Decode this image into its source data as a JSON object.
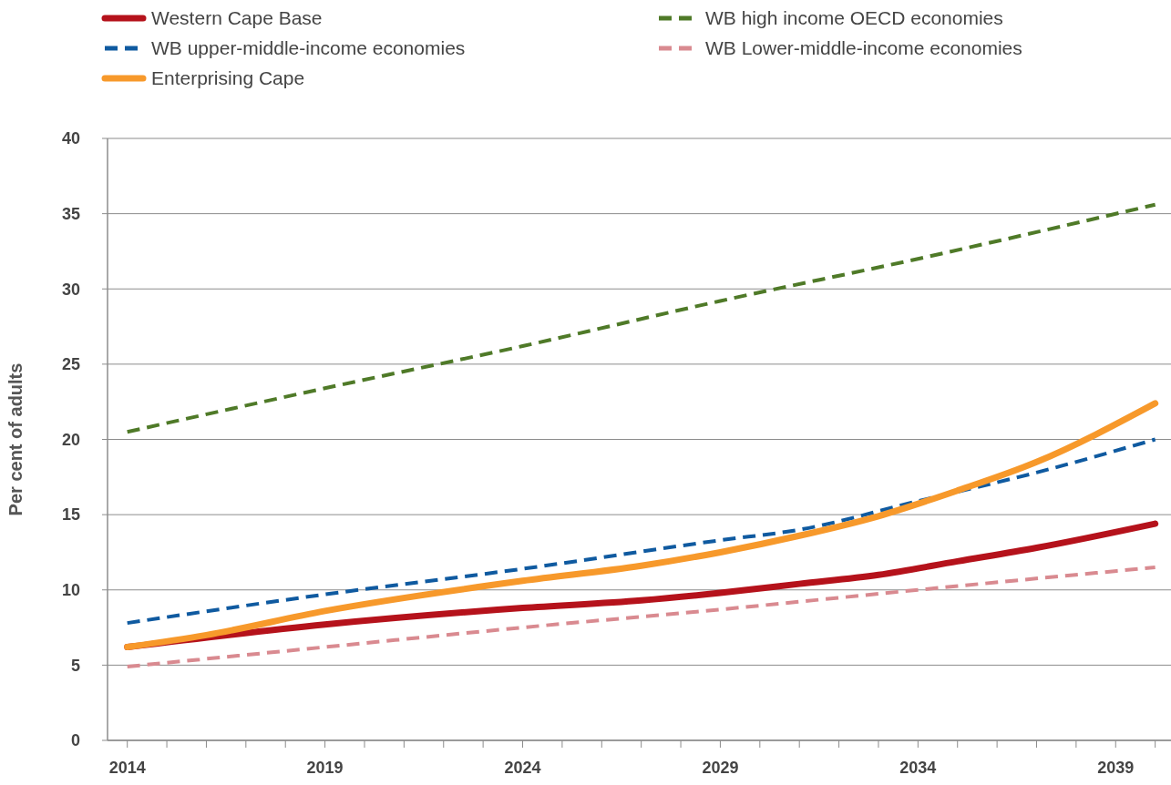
{
  "chart_data": {
    "type": "line",
    "ylabel": "Per cent of adults",
    "xlim": [
      2013.5,
      2040.4
    ],
    "xticks": [
      2014,
      {
        "value": 2015,
        "label": null
      },
      {
        "value": 2016,
        "label": null
      },
      {
        "value": 2017,
        "label": null
      },
      {
        "value": 2018,
        "label": null
      },
      2019,
      {
        "value": 2020,
        "label": null
      },
      {
        "value": 2021,
        "label": null
      },
      {
        "value": 2022,
        "label": null
      },
      {
        "value": 2023,
        "label": null
      },
      2024,
      {
        "value": 2025,
        "label": null
      },
      {
        "value": 2026,
        "label": null
      },
      {
        "value": 2027,
        "label": null
      },
      {
        "value": 2028,
        "label": null
      },
      2029,
      {
        "value": 2030,
        "label": null
      },
      {
        "value": 2031,
        "label": null
      },
      {
        "value": 2032,
        "label": null
      },
      {
        "value": 2033,
        "label": null
      },
      2034,
      {
        "value": 2035,
        "label": null
      },
      {
        "value": 2036,
        "label": null
      },
      {
        "value": 2037,
        "label": null
      },
      {
        "value": 2038,
        "label": null
      },
      2039,
      {
        "value": 2040,
        "label": null
      }
    ],
    "ylim": [
      0,
      40
    ],
    "yticks": [
      0,
      5,
      10,
      15,
      20,
      25,
      30,
      35,
      40
    ],
    "grid": "y",
    "legend": "top",
    "marker": "none",
    "series": [
      {
        "name": "Western Cape Base",
        "color": "#b5121b",
        "line_style": "solid",
        "x": [
          2014,
          2019,
          2024,
          2027,
          2029,
          2031,
          2033,
          2035,
          2037,
          2040
        ],
        "values": [
          6.2,
          7.7,
          8.8,
          9.3,
          9.8,
          10.4,
          11.0,
          11.9,
          12.8,
          14.4
        ]
      },
      {
        "name": "WB high income OECD economies",
        "color": "#4f7a28",
        "line_style": "dashed",
        "x": [
          2014,
          2019,
          2024,
          2029,
          2034,
          2040
        ],
        "values": [
          20.5,
          23.4,
          26.2,
          29.2,
          32.0,
          35.6
        ]
      },
      {
        "name": "WB upper-middle-income economies",
        "color": "#0f5aa0",
        "line_style": "dashed",
        "x": [
          2014,
          2019,
          2024,
          2029,
          2031,
          2034,
          2037,
          2040
        ],
        "values": [
          7.8,
          9.7,
          11.4,
          13.3,
          14.0,
          15.9,
          17.8,
          20.0
        ]
      },
      {
        "name": "WB Lower-middle-income economies",
        "color": "#d98a90",
        "line_style": "dashed",
        "x": [
          2014,
          2019,
          2024,
          2029,
          2034,
          2040
        ],
        "values": [
          4.9,
          6.2,
          7.5,
          8.7,
          10.0,
          11.5
        ]
      },
      {
        "name": "Enterprising Cape",
        "color": "#f7992b",
        "line_style": "solid",
        "x": [
          2014,
          2016,
          2019,
          2024,
          2027,
          2029,
          2031,
          2033,
          2035,
          2037,
          2040
        ],
        "values": [
          6.2,
          7.0,
          8.6,
          10.6,
          11.6,
          12.5,
          13.6,
          14.9,
          16.6,
          18.5,
          22.4
        ]
      }
    ]
  }
}
